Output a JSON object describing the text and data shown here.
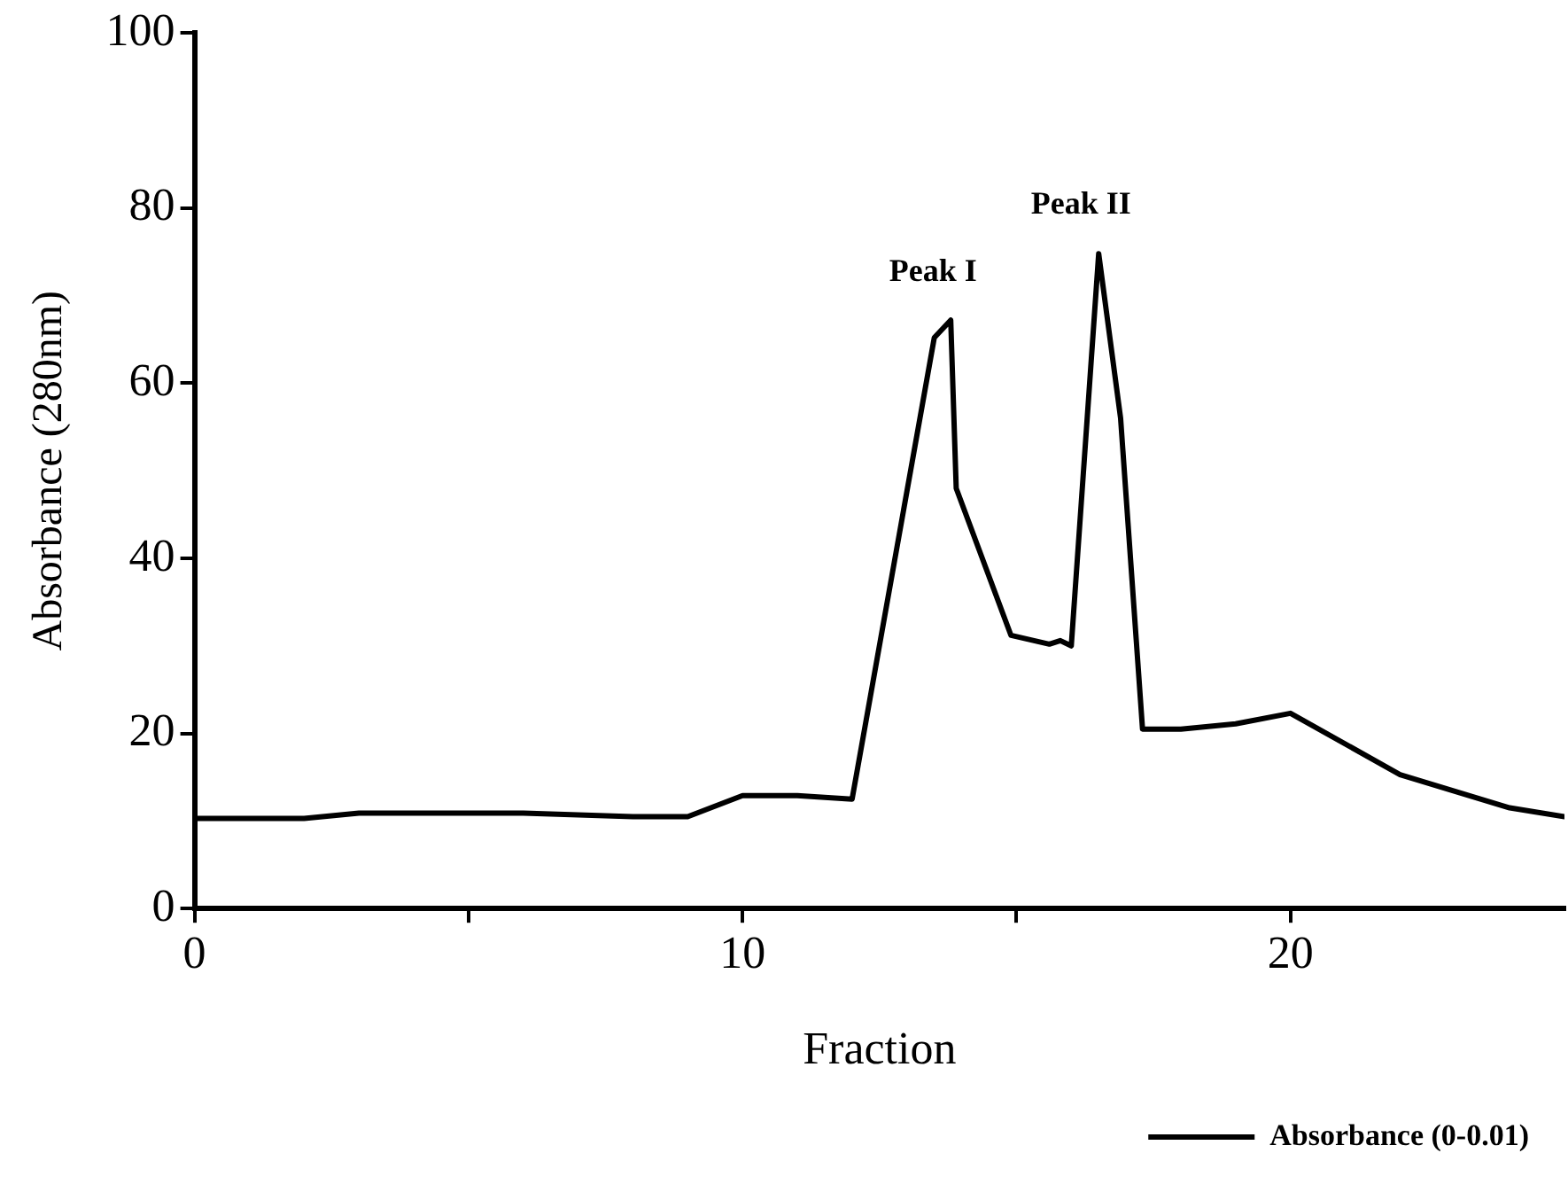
{
  "chart_data": {
    "type": "line",
    "xlabel": "Fraction",
    "ylabel": "Absorbance (280nm)",
    "x": [
      0,
      2,
      3,
      6,
      8,
      9,
      10,
      11,
      12,
      13.5,
      13.8,
      13.9,
      14.9,
      15.6,
      15.8,
      16,
      16.5,
      16.9,
      17.3,
      18,
      19,
      20,
      22,
      24,
      25
    ],
    "series": [
      {
        "name": "Absorbance (0-0.01)",
        "color": "#000000",
        "values": [
          10.3,
          10.3,
          10.9,
          10.9,
          10.5,
          10.5,
          12.9,
          12.9,
          12.5,
          65.2,
          67.2,
          48,
          31.2,
          30.2,
          30.6,
          30,
          74.8,
          56,
          20.5,
          20.5,
          21.1,
          22.3,
          15.3,
          11.5,
          10.5
        ]
      }
    ],
    "xlim": [
      0,
      25
    ],
    "xticks": [
      0,
      {
        "value": 5,
        "label": null
      },
      10,
      {
        "value": 15,
        "label": null
      },
      20
    ],
    "ylim": [
      0,
      100
    ],
    "yticks": [
      0,
      20,
      40,
      60,
      80,
      100
    ],
    "grid": false,
    "legend": "bottom right",
    "marker": "none",
    "line_style": "solid",
    "annotations": [
      {
        "text": "Peak I",
        "x": 13.8,
        "y": 67.2
      },
      {
        "text": "Peak II",
        "x": 16.5,
        "y": 74.8
      }
    ]
  }
}
